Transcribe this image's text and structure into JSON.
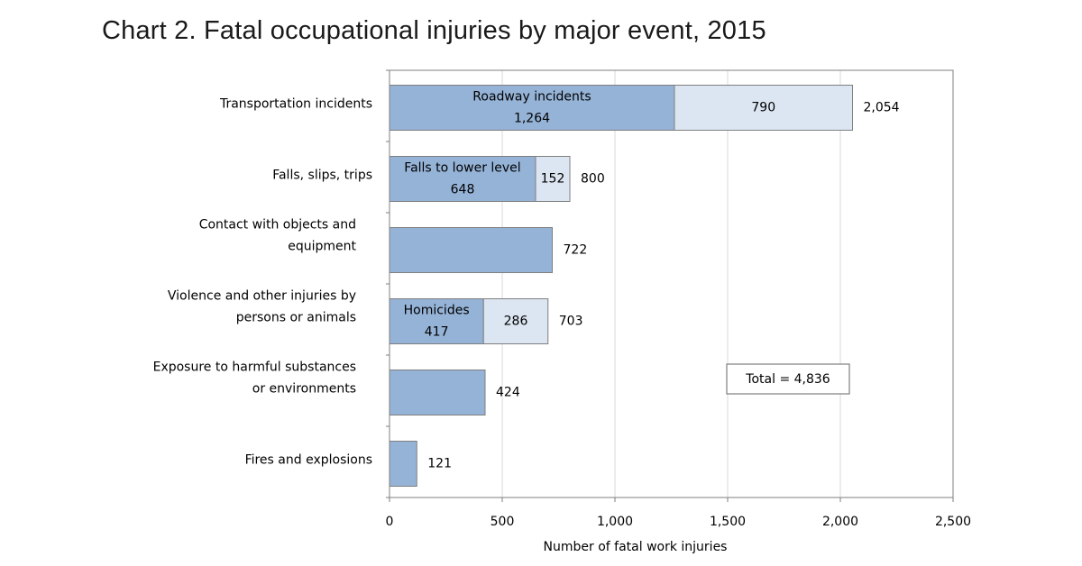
{
  "chart_data": {
    "type": "bar",
    "orientation": "horizontal",
    "stacked": true,
    "title": "Chart 2. Fatal occupational injuries by major event, 2015",
    "xlabel": "Number of fatal work injuries",
    "ylabel": "",
    "xlim": [
      0,
      2500
    ],
    "xticks": [
      "0",
      "500",
      "1,000",
      "1,500",
      "2,000",
      "2,500"
    ],
    "categories": [
      [
        "Transportation incidents"
      ],
      [
        "Falls, slips, trips"
      ],
      [
        "Contact with objects and",
        "equipment"
      ],
      [
        "Violence and other injuries by",
        "persons or animals"
      ],
      [
        "Exposure to harmful substances",
        "or environments"
      ],
      [
        "Fires and explosions"
      ]
    ],
    "bars": [
      {
        "main": 1264,
        "rest": 790,
        "total": 2054,
        "main_label": [
          "Roadway incidents",
          "1,264"
        ],
        "rest_label": "790",
        "total_label": "2,054"
      },
      {
        "main": 648,
        "rest": 152,
        "total": 800,
        "main_label": [
          "Falls to lower level",
          "648"
        ],
        "rest_label": "152",
        "total_label": "800"
      },
      {
        "main": 722,
        "rest": 0,
        "total": 722,
        "main_label": [],
        "rest_label": "",
        "total_label": "722"
      },
      {
        "main": 417,
        "rest": 286,
        "total": 703,
        "main_label": [
          "Homicides",
          "417"
        ],
        "rest_label": "286",
        "total_label": "703"
      },
      {
        "main": 424,
        "rest": 0,
        "total": 424,
        "main_label": [],
        "rest_label": "",
        "total_label": "424"
      },
      {
        "main": 121,
        "rest": 0,
        "total": 121,
        "main_label": [],
        "rest_label": "",
        "total_label": "121"
      }
    ],
    "annotation": "Total = 4,836",
    "grid": true,
    "colors": {
      "main": "#95b3d7",
      "rest": "#dce6f2",
      "grid": "#d9d9d9",
      "frame": "#7f7f7f",
      "bar_edge": "#7f7f7f"
    }
  }
}
